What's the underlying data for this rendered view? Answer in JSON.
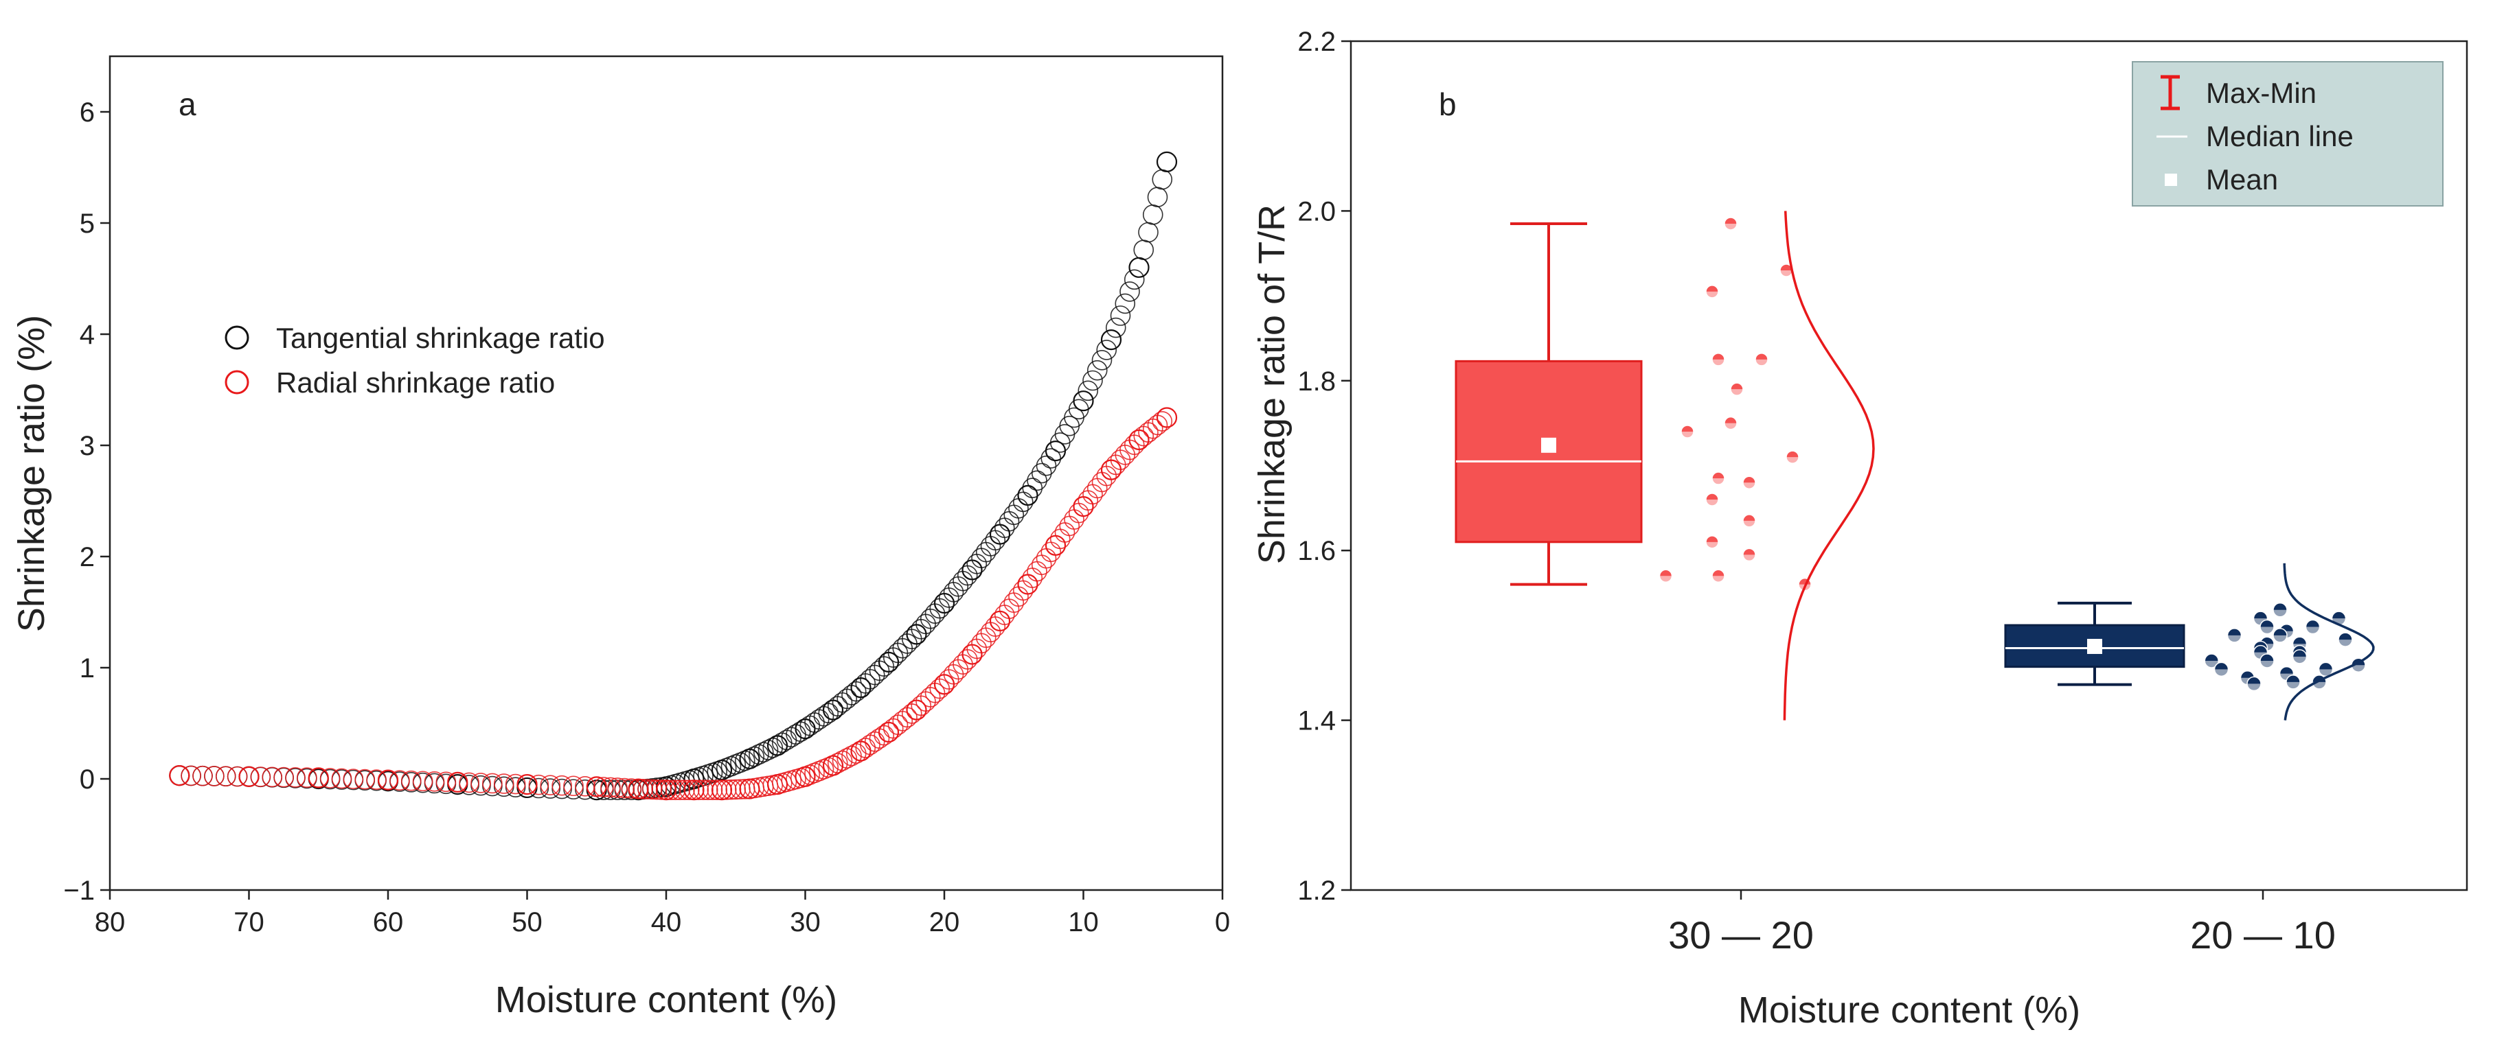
{
  "colors": {
    "tangential": "#111111",
    "radial": "#e8191b",
    "box_a": "#f55252",
    "box_a_edge": "#e01e1e",
    "box_b": "#102f5e",
    "box_b_edge": "#0a1f44",
    "legend_bg": "#c7dad9"
  },
  "chart_data": [
    {
      "panel": "a",
      "type": "scatter",
      "panel_label": "a",
      "xlabel": "Moisture content (%)",
      "ylabel": "Shrinkage ratio (%)",
      "xlim": [
        80,
        0
      ],
      "ylim": [
        -1,
        6.5
      ],
      "x_ticks": [
        80,
        70,
        60,
        50,
        40,
        30,
        20,
        10,
        0
      ],
      "y_ticks": [
        -1,
        0,
        1,
        2,
        3,
        4,
        5,
        6
      ],
      "legend": [
        "Tangential shrinkage ratio",
        "Radial shrinkage ratio"
      ],
      "series": [
        {
          "name": "Tangential shrinkage ratio",
          "marker": "open-circle",
          "x": [
            75,
            70,
            65,
            60,
            55,
            50,
            45,
            42,
            40,
            38,
            36,
            34,
            32,
            30,
            28,
            26,
            24,
            22,
            20,
            18,
            16,
            14,
            12,
            10,
            8,
            6,
            4
          ],
          "y": [
            0.03,
            0.02,
            0.0,
            -0.02,
            -0.05,
            -0.08,
            -0.1,
            -0.1,
            -0.07,
            0.0,
            0.08,
            0.18,
            0.3,
            0.45,
            0.62,
            0.82,
            1.05,
            1.3,
            1.58,
            1.88,
            2.2,
            2.55,
            2.95,
            3.4,
            3.95,
            4.6,
            5.55
          ]
        },
        {
          "name": "Radial shrinkage ratio",
          "marker": "open-circle",
          "x": [
            75,
            70,
            65,
            60,
            55,
            50,
            45,
            42,
            40,
            38,
            36,
            34,
            32,
            30,
            28,
            26,
            24,
            22,
            20,
            18,
            16,
            14,
            12,
            10,
            8,
            6,
            4
          ],
          "y": [
            0.03,
            0.02,
            0.01,
            -0.01,
            -0.03,
            -0.05,
            -0.07,
            -0.09,
            -0.1,
            -0.1,
            -0.1,
            -0.09,
            -0.05,
            0.02,
            0.12,
            0.25,
            0.42,
            0.62,
            0.85,
            1.12,
            1.42,
            1.75,
            2.1,
            2.45,
            2.78,
            3.05,
            3.25
          ]
        }
      ]
    },
    {
      "panel": "b",
      "type": "box",
      "panel_label": "b",
      "xlabel": "Moisture content (%)",
      "ylabel": "Shrinkage ratio of T/R",
      "ylim": [
        1.2,
        2.2
      ],
      "y_ticks": [
        1.2,
        1.4,
        1.6,
        1.8,
        2.0,
        2.2
      ],
      "y_tick_labels": [
        "1.2",
        "1.4",
        "1.6",
        "1.8",
        "2.0",
        "2.2"
      ],
      "categories": [
        "30 — 20",
        "20 — 10"
      ],
      "legend": [
        "Max-Min",
        "Median line",
        "Mean"
      ],
      "boxes": [
        {
          "name": "30 — 20",
          "min": 1.56,
          "q1": 1.61,
          "median": 1.705,
          "q3": 1.823,
          "max": 1.985,
          "mean": 1.724,
          "points": [
            1.985,
            1.93,
            1.905,
            1.825,
            1.825,
            1.79,
            1.75,
            1.74,
            1.71,
            1.685,
            1.68,
            1.66,
            1.635,
            1.61,
            1.595,
            1.57,
            1.57,
            1.56
          ],
          "dist_mean": 1.72,
          "dist_sd": 0.095,
          "dist_range": [
            1.4,
            2.0
          ]
        },
        {
          "name": "20 — 10",
          "min": 1.442,
          "q1": 1.463,
          "median": 1.485,
          "q3": 1.512,
          "max": 1.538,
          "mean": 1.487,
          "points": [
            1.53,
            1.52,
            1.52,
            1.51,
            1.51,
            1.505,
            1.5,
            1.5,
            1.495,
            1.49,
            1.49,
            1.485,
            1.48,
            1.48,
            1.475,
            1.47,
            1.47,
            1.465,
            1.46,
            1.46,
            1.455,
            1.45,
            1.445,
            1.445,
            1.443
          ],
          "dist_mean": 1.485,
          "dist_sd": 0.028,
          "dist_range": [
            1.4,
            1.585
          ]
        }
      ]
    }
  ]
}
